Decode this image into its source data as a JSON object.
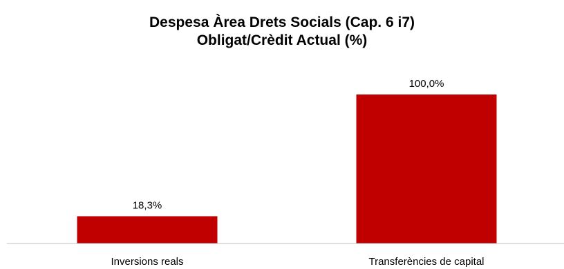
{
  "chart_data": {
    "type": "bar",
    "title": "Despesa Àrea Drets Socials (Cap. 6 i7)",
    "subtitle": "Obligat/Crèdit Actual (%)",
    "categories": [
      "Inversions reals",
      "Transferències de capital"
    ],
    "values": [
      18.3,
      100.0
    ],
    "data_labels": [
      "18,3%",
      "100,0%"
    ],
    "ylim": [
      0,
      100
    ],
    "grid": false,
    "legend": "none",
    "bar_color": "#c00000",
    "axis_color": "#bfbfbf"
  }
}
